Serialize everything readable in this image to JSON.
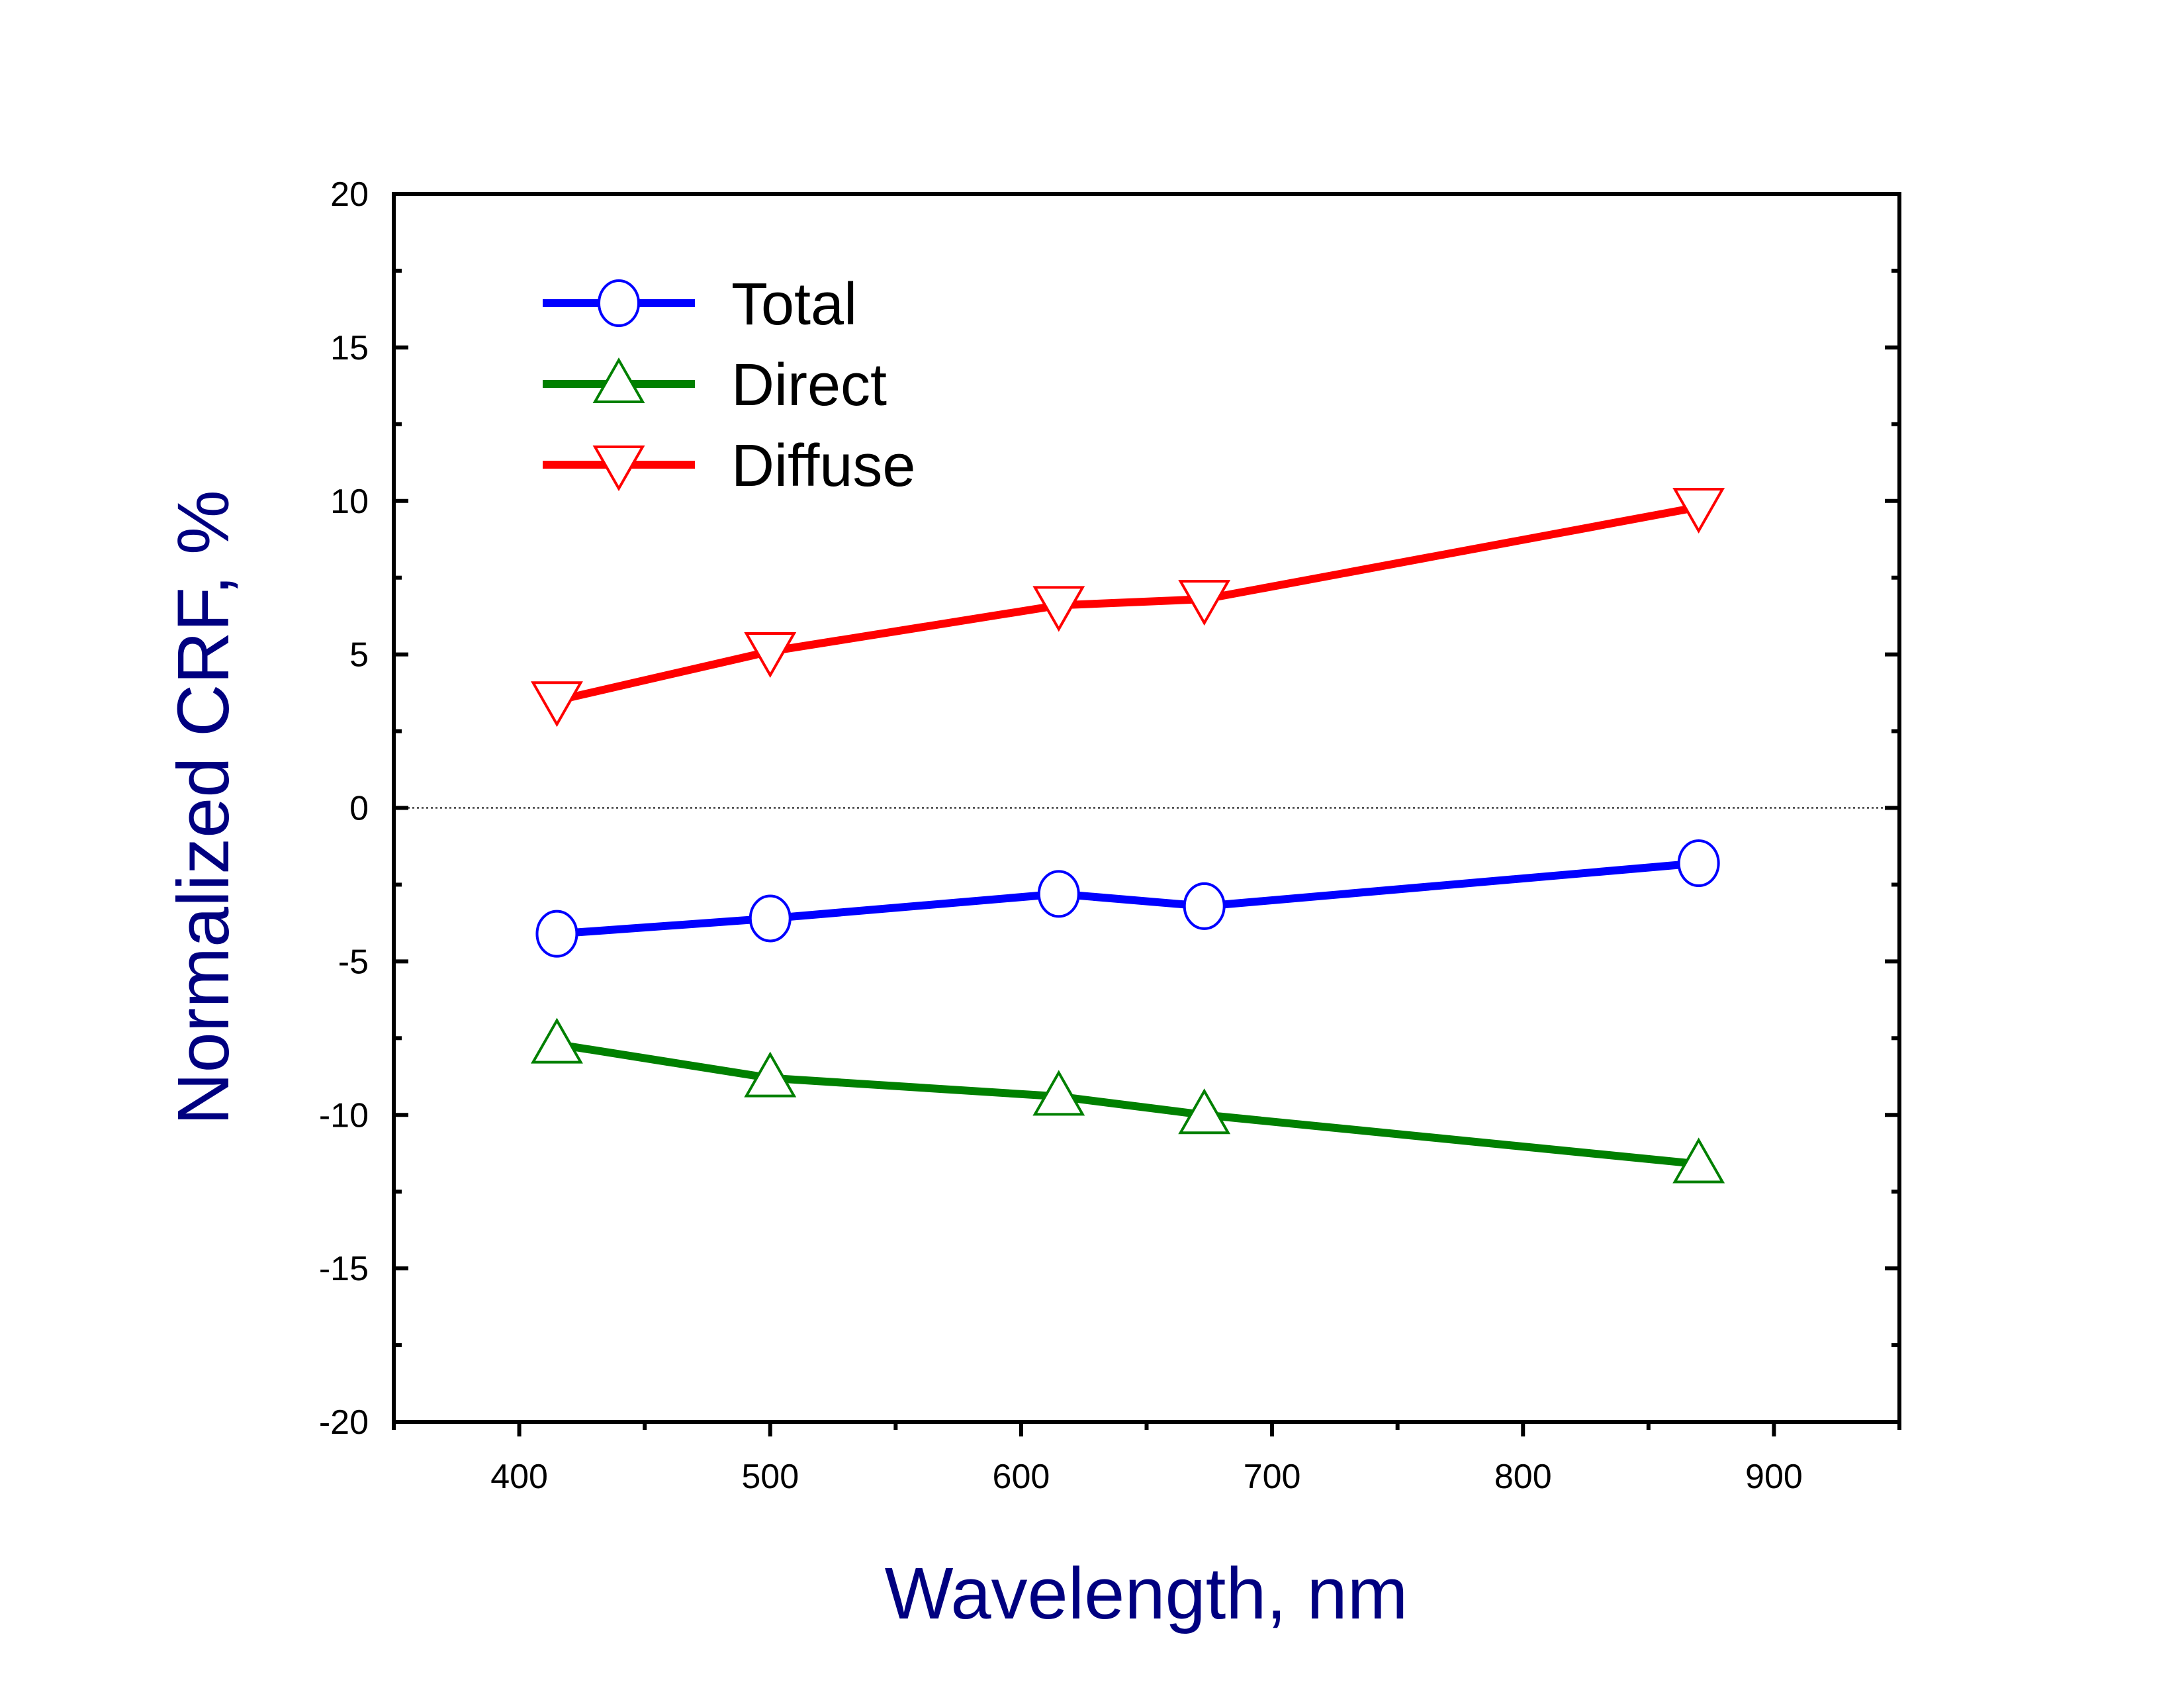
{
  "chart_data": {
    "type": "line",
    "title": "",
    "xlabel": "Wavelength, nm",
    "ylabel": "Normalized CRF, %",
    "xlim": [
      350,
      950
    ],
    "ylim": [
      -20,
      20
    ],
    "xticks": [
      400,
      500,
      600,
      700,
      800,
      900
    ],
    "yticks": [
      20,
      15,
      10,
      5,
      0,
      -5,
      -10,
      -15,
      -20
    ],
    "grid": false,
    "zero_line": true,
    "legend_position": "top-left",
    "x": [
      415,
      500,
      615,
      673,
      870
    ],
    "series": [
      {
        "name": "Total",
        "marker": "circle",
        "color": "#0000ff",
        "values": [
          -4.1,
          -3.6,
          -2.8,
          -3.2,
          -1.8
        ]
      },
      {
        "name": "Direct",
        "marker": "triangle-up",
        "color": "#008000",
        "values": [
          -7.7,
          -8.8,
          -9.4,
          -10.0,
          -11.6
        ]
      },
      {
        "name": "Diffuse",
        "marker": "triangle-down",
        "color": "#ff0000",
        "values": [
          3.5,
          5.1,
          6.6,
          6.8,
          9.8
        ]
      }
    ]
  }
}
